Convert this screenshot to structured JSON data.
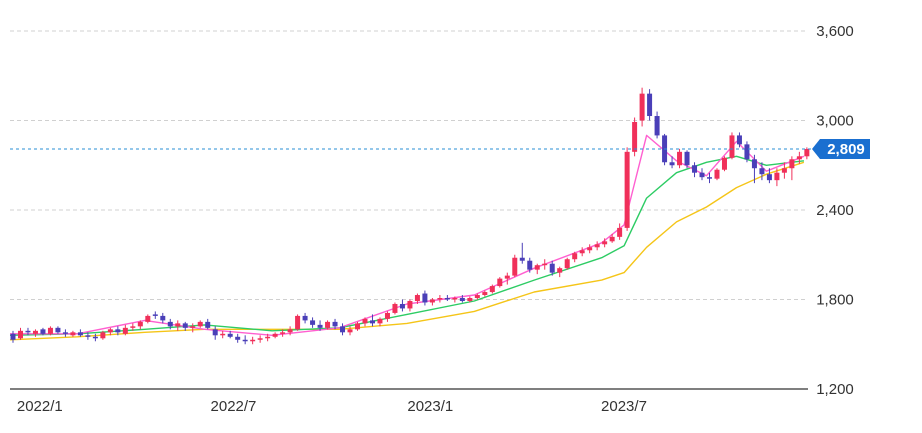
{
  "chart_data": {
    "type": "candlestick",
    "title": "",
    "xlabel": "",
    "ylabel": "",
    "ylim": [
      1200,
      3700
    ],
    "y_ticks": [
      {
        "value": 1200,
        "label": "1,200"
      },
      {
        "value": 1800,
        "label": "1,800"
      },
      {
        "value": 2400,
        "label": "2,400"
      },
      {
        "value": 3000,
        "label": "3,000"
      },
      {
        "value": 3600,
        "label": "3,600"
      }
    ],
    "x_ticks": [
      {
        "date": "2022-01",
        "label": "2022/1"
      },
      {
        "date": "2022-07",
        "label": "2022/7"
      },
      {
        "date": "2023-01",
        "label": "2023/1"
      },
      {
        "date": "2023-07",
        "label": "2023/7"
      }
    ],
    "current_price": {
      "value": 2809,
      "label": "2,809"
    },
    "grid": true,
    "colors": {
      "up": "#f0305a",
      "down": "#4a3fb8",
      "ma_short": "#ff5fd0",
      "ma_mid": "#2dcc64",
      "ma_long": "#f5c518",
      "price_line": "#2a8fd6",
      "price_tag": "#1a6fd0",
      "grid": "#d0d0d0",
      "axis": "#333333"
    },
    "series": [
      {
        "name": "",
        "kind": "ohlc",
        "points": [
          [
            "2021-12-06",
            1570,
            1590,
            1510,
            1530
          ],
          [
            "2021-12-13",
            1540,
            1610,
            1530,
            1590
          ],
          [
            "2021-12-20",
            1590,
            1610,
            1560,
            1580
          ],
          [
            "2021-12-27",
            1570,
            1600,
            1550,
            1590
          ],
          [
            "2022-01-03",
            1600,
            1610,
            1560,
            1570
          ],
          [
            "2022-01-10",
            1570,
            1620,
            1560,
            1610
          ],
          [
            "2022-01-17",
            1610,
            1620,
            1570,
            1580
          ],
          [
            "2022-01-24",
            1580,
            1600,
            1550,
            1570
          ],
          [
            "2022-01-31",
            1560,
            1590,
            1550,
            1580
          ],
          [
            "2022-02-07",
            1580,
            1600,
            1550,
            1560
          ],
          [
            "2022-02-14",
            1560,
            1580,
            1530,
            1550
          ],
          [
            "2022-02-21",
            1550,
            1570,
            1520,
            1540
          ],
          [
            "2022-02-28",
            1540,
            1590,
            1530,
            1580
          ],
          [
            "2022-03-07",
            1580,
            1610,
            1560,
            1600
          ],
          [
            "2022-03-14",
            1600,
            1620,
            1560,
            1580
          ],
          [
            "2022-03-21",
            1570,
            1630,
            1560,
            1610
          ],
          [
            "2022-03-28",
            1610,
            1640,
            1590,
            1620
          ],
          [
            "2022-04-04",
            1620,
            1660,
            1600,
            1650
          ],
          [
            "2022-04-11",
            1650,
            1700,
            1640,
            1690
          ],
          [
            "2022-04-18",
            1700,
            1720,
            1670,
            1690
          ],
          [
            "2022-04-25",
            1690,
            1710,
            1640,
            1660
          ],
          [
            "2022-05-02",
            1650,
            1670,
            1600,
            1620
          ],
          [
            "2022-05-09",
            1620,
            1660,
            1590,
            1640
          ],
          [
            "2022-05-16",
            1640,
            1650,
            1590,
            1610
          ],
          [
            "2022-05-23",
            1610,
            1640,
            1580,
            1620
          ],
          [
            "2022-05-30",
            1620,
            1660,
            1610,
            1650
          ],
          [
            "2022-06-06",
            1650,
            1670,
            1600,
            1610
          ],
          [
            "2022-06-13",
            1600,
            1620,
            1530,
            1560
          ],
          [
            "2022-06-20",
            1560,
            1590,
            1540,
            1570
          ],
          [
            "2022-06-27",
            1570,
            1590,
            1540,
            1550
          ],
          [
            "2022-07-04",
            1550,
            1570,
            1510,
            1530
          ],
          [
            "2022-07-11",
            1530,
            1560,
            1500,
            1520
          ],
          [
            "2022-07-18",
            1520,
            1550,
            1500,
            1530
          ],
          [
            "2022-07-25",
            1530,
            1560,
            1510,
            1540
          ],
          [
            "2022-08-01",
            1540,
            1570,
            1520,
            1550
          ],
          [
            "2022-08-08",
            1550,
            1580,
            1540,
            1570
          ],
          [
            "2022-08-15",
            1570,
            1600,
            1550,
            1580
          ],
          [
            "2022-08-22",
            1580,
            1620,
            1560,
            1600
          ],
          [
            "2022-08-29",
            1600,
            1700,
            1590,
            1690
          ],
          [
            "2022-09-05",
            1690,
            1710,
            1640,
            1660
          ],
          [
            "2022-09-12",
            1660,
            1680,
            1610,
            1630
          ],
          [
            "2022-09-19",
            1630,
            1660,
            1590,
            1610
          ],
          [
            "2022-09-26",
            1610,
            1660,
            1600,
            1650
          ],
          [
            "2022-10-03",
            1650,
            1670,
            1600,
            1620
          ],
          [
            "2022-10-10",
            1620,
            1640,
            1560,
            1580
          ],
          [
            "2022-10-17",
            1580,
            1620,
            1560,
            1600
          ],
          [
            "2022-10-24",
            1600,
            1650,
            1590,
            1640
          ],
          [
            "2022-10-31",
            1640,
            1680,
            1620,
            1670
          ],
          [
            "2022-11-07",
            1660,
            1700,
            1620,
            1640
          ],
          [
            "2022-11-14",
            1640,
            1680,
            1620,
            1670
          ],
          [
            "2022-11-21",
            1670,
            1720,
            1650,
            1710
          ],
          [
            "2022-11-28",
            1710,
            1780,
            1700,
            1770
          ],
          [
            "2022-12-05",
            1770,
            1800,
            1720,
            1740
          ],
          [
            "2022-12-12",
            1740,
            1800,
            1720,
            1790
          ],
          [
            "2022-12-19",
            1790,
            1840,
            1770,
            1830
          ],
          [
            "2022-12-26",
            1840,
            1860,
            1760,
            1780
          ],
          [
            "2023-01-02",
            1780,
            1810,
            1760,
            1800
          ],
          [
            "2023-01-09",
            1800,
            1830,
            1780,
            1810
          ],
          [
            "2023-01-16",
            1810,
            1830,
            1790,
            1800
          ],
          [
            "2023-01-23",
            1800,
            1820,
            1780,
            1810
          ],
          [
            "2023-01-30",
            1810,
            1830,
            1780,
            1790
          ],
          [
            "2023-02-06",
            1790,
            1820,
            1780,
            1810
          ],
          [
            "2023-02-13",
            1810,
            1840,
            1800,
            1830
          ],
          [
            "2023-02-20",
            1830,
            1860,
            1820,
            1850
          ],
          [
            "2023-02-27",
            1850,
            1900,
            1840,
            1890
          ],
          [
            "2023-03-06",
            1890,
            1950,
            1880,
            1940
          ],
          [
            "2023-03-13",
            1940,
            1980,
            1900,
            1960
          ],
          [
            "2023-03-20",
            1960,
            2100,
            1950,
            2080
          ],
          [
            "2023-03-27",
            2080,
            2180,
            2040,
            2060
          ],
          [
            "2023-04-03",
            2060,
            2080,
            1980,
            2000
          ],
          [
            "2023-04-10",
            2000,
            2040,
            1970,
            2030
          ],
          [
            "2023-04-17",
            2030,
            2070,
            2000,
            2040
          ],
          [
            "2023-04-24",
            2040,
            2060,
            1960,
            1980
          ],
          [
            "2023-05-01",
            1980,
            2020,
            1950,
            2010
          ],
          [
            "2023-05-08",
            2010,
            2080,
            2000,
            2070
          ],
          [
            "2023-05-15",
            2070,
            2120,
            2050,
            2110
          ],
          [
            "2023-05-22",
            2110,
            2150,
            2090,
            2130
          ],
          [
            "2023-05-29",
            2130,
            2170,
            2110,
            2150
          ],
          [
            "2023-06-05",
            2150,
            2190,
            2130,
            2170
          ],
          [
            "2023-06-12",
            2170,
            2210,
            2150,
            2190
          ],
          [
            "2023-06-19",
            2190,
            2240,
            2180,
            2220
          ],
          [
            "2023-06-26",
            2220,
            2310,
            2200,
            2280
          ],
          [
            "2023-07-03",
            2280,
            2820,
            2260,
            2790
          ],
          [
            "2023-07-10",
            2790,
            3020,
            2760,
            2990
          ],
          [
            "2023-07-17",
            3000,
            3220,
            2960,
            3180
          ],
          [
            "2023-07-24",
            3180,
            3210,
            3000,
            3030
          ],
          [
            "2023-07-31",
            3030,
            3060,
            2880,
            2900
          ],
          [
            "2023-08-07",
            2900,
            2910,
            2700,
            2720
          ],
          [
            "2023-08-14",
            2720,
            2760,
            2680,
            2700
          ],
          [
            "2023-08-21",
            2700,
            2810,
            2680,
            2790
          ],
          [
            "2023-08-28",
            2790,
            2800,
            2680,
            2700
          ],
          [
            "2023-09-04",
            2700,
            2720,
            2620,
            2650
          ],
          [
            "2023-09-11",
            2650,
            2680,
            2600,
            2620
          ],
          [
            "2023-09-18",
            2620,
            2650,
            2580,
            2610
          ],
          [
            "2023-09-25",
            2610,
            2680,
            2600,
            2670
          ],
          [
            "2023-10-02",
            2670,
            2760,
            2660,
            2750
          ],
          [
            "2023-10-09",
            2750,
            2920,
            2740,
            2900
          ],
          [
            "2023-10-16",
            2900,
            2920,
            2820,
            2840
          ],
          [
            "2023-10-23",
            2840,
            2860,
            2720,
            2740
          ],
          [
            "2023-10-30",
            2740,
            2770,
            2580,
            2680
          ],
          [
            "2023-11-06",
            2680,
            2720,
            2600,
            2640
          ],
          [
            "2023-11-13",
            2640,
            2680,
            2580,
            2600
          ],
          [
            "2023-11-20",
            2600,
            2680,
            2560,
            2650
          ],
          [
            "2023-11-27",
            2650,
            2720,
            2610,
            2680
          ],
          [
            "2023-12-04",
            2680,
            2760,
            2600,
            2740
          ],
          [
            "2023-12-11",
            2740,
            2790,
            2710,
            2760
          ],
          [
            "2023-12-18",
            2760,
            2820,
            2740,
            2809
          ]
        ]
      },
      {
        "name": "",
        "kind": "ma_short",
        "x": [
          "2021-12-06",
          "2022-02-07",
          "2022-04-11",
          "2022-06-06",
          "2022-08-08",
          "2022-10-10",
          "2022-12-12",
          "2023-02-13",
          "2023-04-10",
          "2023-06-12",
          "2023-07-03",
          "2023-07-24",
          "2023-08-21",
          "2023-09-18",
          "2023-10-16",
          "2023-11-13",
          "2023-12-18"
        ],
        "values": [
          1570,
          1570,
          1660,
          1600,
          1560,
          1610,
          1770,
          1830,
          2010,
          2180,
          2300,
          2900,
          2730,
          2630,
          2860,
          2660,
          2760
        ]
      },
      {
        "name": "",
        "kind": "ma_mid",
        "x": [
          "2021-12-06",
          "2022-02-07",
          "2022-04-11",
          "2022-06-06",
          "2022-08-08",
          "2022-10-10",
          "2022-12-12",
          "2023-02-13",
          "2023-04-10",
          "2023-06-12",
          "2023-07-03",
          "2023-07-24",
          "2023-08-21",
          "2023-09-18",
          "2023-10-16",
          "2023-11-13",
          "2023-12-18"
        ],
        "values": [
          1560,
          1570,
          1600,
          1630,
          1590,
          1610,
          1700,
          1790,
          1930,
          2080,
          2160,
          2480,
          2650,
          2720,
          2760,
          2700,
          2730
        ]
      },
      {
        "name": "",
        "kind": "ma_long",
        "x": [
          "2021-12-06",
          "2022-02-07",
          "2022-04-11",
          "2022-06-06",
          "2022-08-08",
          "2022-10-10",
          "2022-12-12",
          "2023-02-13",
          "2023-04-10",
          "2023-06-12",
          "2023-07-03",
          "2023-07-24",
          "2023-08-21",
          "2023-09-18",
          "2023-10-16",
          "2023-11-13",
          "2023-12-18"
        ],
        "values": [
          1530,
          1550,
          1580,
          1600,
          1600,
          1600,
          1640,
          1720,
          1850,
          1930,
          1980,
          2150,
          2320,
          2420,
          2550,
          2640,
          2720
        ]
      }
    ]
  }
}
